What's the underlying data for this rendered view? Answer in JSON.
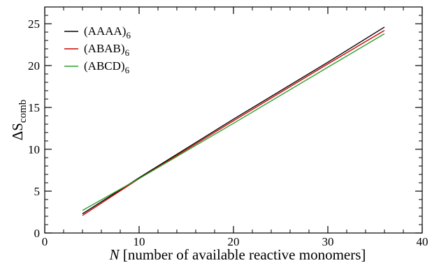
{
  "chart_data": {
    "type": "line",
    "xlabel": {
      "symbol": "N",
      "text": " [number of available reactive monomers]"
    },
    "ylabel": {
      "main": "ΔS",
      "sub": "comb"
    },
    "xlim": [
      0,
      40
    ],
    "ylim": [
      0,
      27
    ],
    "xticks": [
      0,
      10,
      20,
      30,
      40
    ],
    "yticks": [
      0,
      5,
      10,
      15,
      20,
      25
    ],
    "x_minor_step": 2,
    "y_minor_step": 1,
    "grid": false,
    "legend_position": "top-left",
    "series": [
      {
        "name": "(AAAA)",
        "sub": "6",
        "color": "#000000",
        "x": [
          4,
          10,
          20,
          30,
          36
        ],
        "y": [
          2.3,
          6.6,
          13.6,
          20.4,
          24.6
        ]
      },
      {
        "name": "(ABAB)",
        "sub": "6",
        "color": "#d00000",
        "x": [
          4,
          10,
          20,
          30,
          36
        ],
        "y": [
          2.1,
          6.5,
          13.4,
          20.2,
          24.2
        ]
      },
      {
        "name": "(ABCD)",
        "sub": "6",
        "color": "#2ca02c",
        "x": [
          4,
          10,
          20,
          30,
          36
        ],
        "y": [
          2.7,
          6.5,
          13.1,
          19.8,
          23.8
        ]
      }
    ]
  }
}
